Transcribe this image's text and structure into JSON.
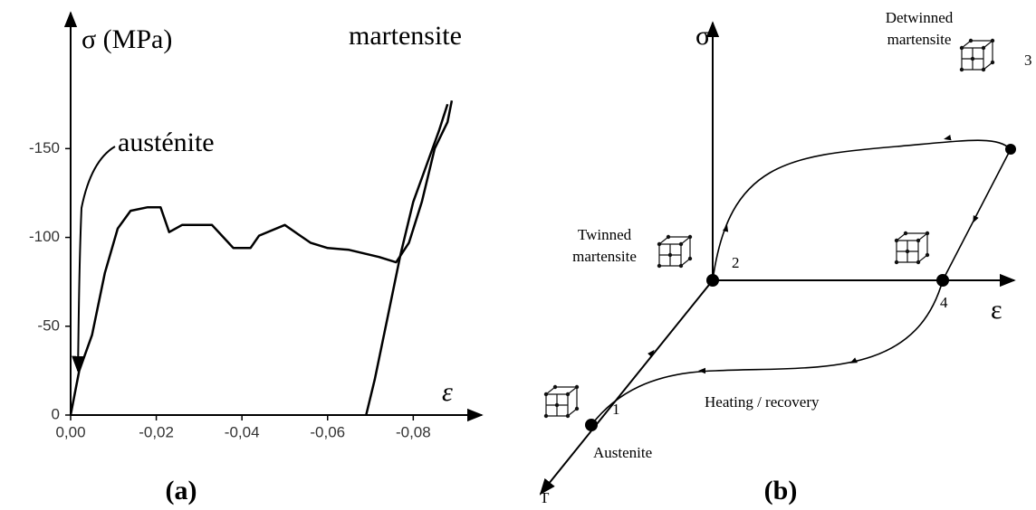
{
  "chart_data": {
    "type": "line",
    "y_label": "σ (MPa)",
    "x_label": "ε",
    "annotations": [
      "austénite",
      "martensite"
    ],
    "panel_label": "(a)",
    "xlim": [
      0,
      -0.096
    ],
    "ylim": [
      0,
      -225
    ],
    "xticks": [
      {
        "value": 0,
        "label": "0,00"
      },
      {
        "value": -0.02,
        "label": "-0,02"
      },
      {
        "value": -0.04,
        "label": "-0,04"
      },
      {
        "value": -0.06,
        "label": "-0,06"
      },
      {
        "value": -0.08,
        "label": "-0,08"
      }
    ],
    "yticks": [
      0,
      -50,
      -100,
      -150
    ],
    "series": [
      {
        "color": "#000000",
        "x": [
          0,
          -0.002,
          -0.005,
          -0.008,
          -0.011,
          -0.014,
          -0.018,
          -0.021,
          -0.023,
          -0.026,
          -0.033,
          -0.038,
          -0.042,
          -0.044,
          -0.05,
          -0.053,
          -0.056,
          -0.06,
          -0.065,
          -0.072,
          -0.076,
          -0.079,
          -0.082,
          -0.085,
          -0.088,
          -0.089
        ],
        "values": [
          0,
          -25,
          -45,
          -80,
          -105,
          -115,
          -117,
          -117,
          -103,
          -107,
          -107,
          -94,
          -94,
          -101,
          -107,
          -102,
          -97,
          -94,
          -93,
          -89,
          -86,
          -97,
          -120,
          -150,
          -165,
          -177
        ]
      },
      {
        "color": "#000000",
        "x": [
          -0.069,
          -0.071,
          -0.074,
          -0.077,
          -0.08,
          -0.083,
          -0.086,
          -0.088
        ],
        "values": [
          0,
          -20,
          -55,
          -90,
          -120,
          -140,
          -160,
          -175
        ]
      }
    ]
  },
  "diagram": {
    "axes": {
      "stress": "σ",
      "strain": "ε",
      "temperature": "T"
    },
    "nodes": [
      {
        "number": "1",
        "label": "Austenite"
      },
      {
        "number": "2",
        "label": "Twinned martensite"
      },
      {
        "number": "3",
        "label": "Detwinned martensite"
      },
      {
        "number": "4"
      }
    ],
    "path_label": "Heating / recovery",
    "panel_label": "(b)"
  }
}
